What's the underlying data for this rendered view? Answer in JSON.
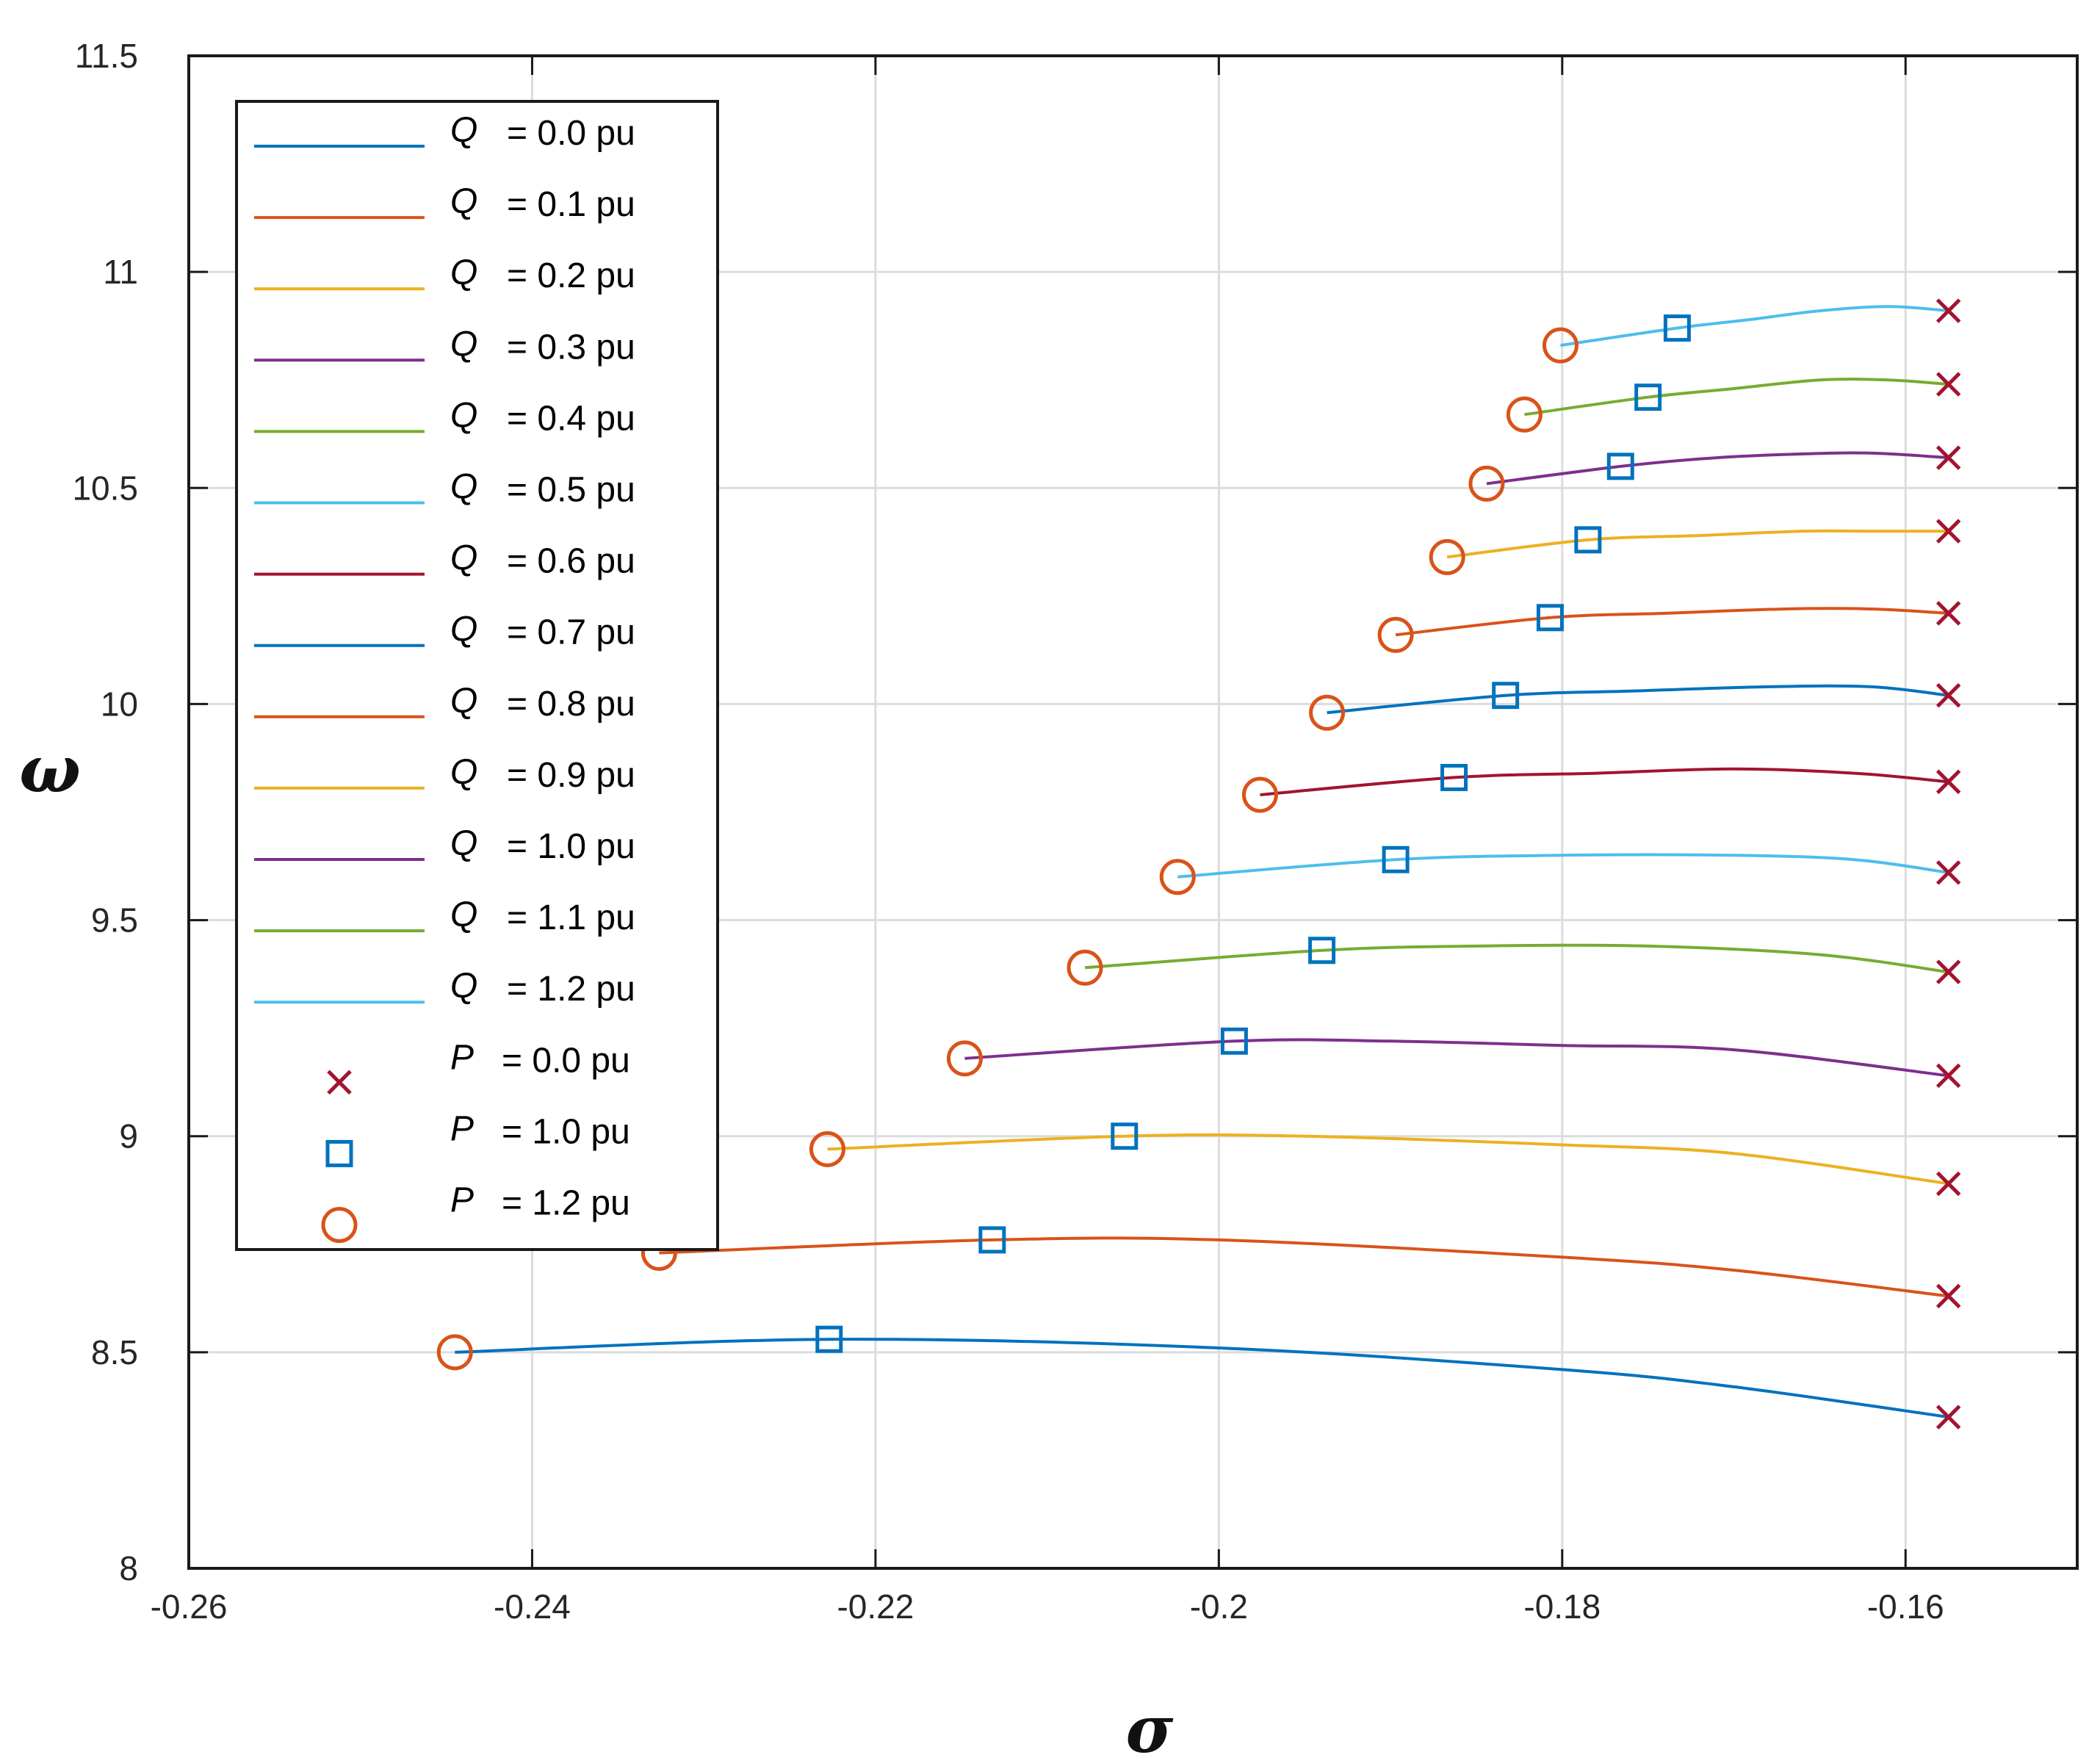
{
  "chart_data": {
    "type": "line",
    "title": "",
    "xlabel": "σ",
    "ylabel": "ω",
    "xlim": [
      -0.26,
      -0.15
    ],
    "ylim": [
      8,
      11.5
    ],
    "x_ticks": [
      -0.26,
      -0.24,
      -0.22,
      -0.2,
      -0.18,
      -0.16
    ],
    "x_tick_labels": [
      "-0.26",
      "-0.24",
      "-0.22",
      "-0.2",
      "-0.18",
      "-0.16"
    ],
    "y_ticks": [
      8,
      8.5,
      9,
      9.5,
      10,
      10.5,
      11,
      11.5
    ],
    "y_tick_labels": [
      "8",
      "8.5",
      "9",
      "9.5",
      "10",
      "10.5",
      "11",
      "11.5"
    ],
    "grid": true,
    "legend_position": "top-left",
    "series": [
      {
        "name": "Q = 0.0 pu",
        "var": "Q",
        "label": "= 0.0 pu",
        "color": "#0072BD",
        "x": [
          -0.2445,
          -0.2227,
          -0.2,
          -0.18,
          -0.17,
          -0.1575
        ],
        "y": [
          8.5,
          8.53,
          8.51,
          8.46,
          8.42,
          8.35
        ]
      },
      {
        "name": "Q = 0.1 pu",
        "var": "Q",
        "label": "= 0.1 pu",
        "color": "#D95319",
        "x": [
          -0.2326,
          -0.2132,
          -0.2,
          -0.18,
          -0.17,
          -0.1575
        ],
        "y": [
          8.73,
          8.76,
          8.76,
          8.72,
          8.69,
          8.63
        ]
      },
      {
        "name": "Q = 0.2 pu",
        "var": "Q",
        "label": "= 0.2 pu",
        "color": "#EDB120",
        "x": [
          -0.2228,
          -0.2055,
          -0.195,
          -0.18,
          -0.17,
          -0.1575
        ],
        "y": [
          8.97,
          9.0,
          9.0,
          8.98,
          8.96,
          8.89
        ]
      },
      {
        "name": "Q = 0.3 pu",
        "var": "Q",
        "label": "= 0.3 pu",
        "color": "#7E2F8E",
        "x": [
          -0.2148,
          -0.1991,
          -0.19,
          -0.18,
          -0.17,
          -0.1575
        ],
        "y": [
          9.18,
          9.22,
          9.22,
          9.21,
          9.2,
          9.14
        ]
      },
      {
        "name": "Q = 0.4 pu",
        "var": "Q",
        "label": "= 0.4 pu",
        "color": "#77AC30",
        "x": [
          -0.2078,
          -0.194,
          -0.185,
          -0.175,
          -0.165,
          -0.1575
        ],
        "y": [
          9.39,
          9.43,
          9.44,
          9.44,
          9.42,
          9.38
        ]
      },
      {
        "name": "Q = 0.5 pu",
        "var": "Q",
        "label": "= 0.5 pu",
        "color": "#4DBEEE",
        "x": [
          -0.2024,
          -0.1897,
          -0.18,
          -0.17,
          -0.163,
          -0.1575
        ],
        "y": [
          9.6,
          9.64,
          9.65,
          9.65,
          9.64,
          9.61
        ]
      },
      {
        "name": "Q = 0.6 pu",
        "var": "Q",
        "label": "= 0.6 pu",
        "color": "#A2142F",
        "x": [
          -0.1976,
          -0.1863,
          -0.178,
          -0.17,
          -0.163,
          -0.1575
        ],
        "y": [
          9.79,
          9.83,
          9.84,
          9.85,
          9.84,
          9.82
        ]
      },
      {
        "name": "Q = 0.7 pu",
        "var": "Q",
        "label": "= 0.7 pu",
        "color": "#0072BD",
        "x": [
          -0.1937,
          -0.1833,
          -0.176,
          -0.168,
          -0.162,
          -0.1575
        ],
        "y": [
          9.98,
          10.02,
          10.03,
          10.04,
          10.04,
          10.02
        ]
      },
      {
        "name": "Q = 0.8 pu",
        "var": "Q",
        "label": "= 0.8 pu",
        "color": "#D95319",
        "x": [
          -0.1897,
          -0.1807,
          -0.174,
          -0.167,
          -0.162,
          -0.1575
        ],
        "y": [
          10.16,
          10.2,
          10.21,
          10.22,
          10.22,
          10.21
        ]
      },
      {
        "name": "Q = 0.9 pu",
        "var": "Q",
        "label": "= 0.9 pu",
        "color": "#EDB120",
        "x": [
          -0.1867,
          -0.1785,
          -0.172,
          -0.166,
          -0.162,
          -0.1575
        ],
        "y": [
          10.34,
          10.38,
          10.39,
          10.4,
          10.4,
          10.4
        ]
      },
      {
        "name": "Q = 1.0 pu",
        "var": "Q",
        "label": "= 1.0 pu",
        "color": "#7E2F8E",
        "x": [
          -0.1844,
          -0.1766,
          -0.171,
          -0.165,
          -0.1615,
          -0.1575
        ],
        "y": [
          10.51,
          10.55,
          10.57,
          10.58,
          10.58,
          10.57
        ]
      },
      {
        "name": "Q = 1.1 pu",
        "var": "Q",
        "label": "= 1.1 pu",
        "color": "#77AC30",
        "x": [
          -0.1822,
          -0.175,
          -0.17,
          -0.165,
          -0.161,
          -0.1575
        ],
        "y": [
          10.67,
          10.71,
          10.73,
          10.75,
          10.75,
          10.74
        ]
      },
      {
        "name": "Q = 1.2 pu",
        "var": "Q",
        "label": "= 1.2 pu",
        "color": "#4DBEEE",
        "x": [
          -0.1801,
          -0.1733,
          -0.169,
          -0.165,
          -0.161,
          -0.1575
        ],
        "y": [
          10.83,
          10.87,
          10.89,
          10.91,
          10.92,
          10.91
        ]
      }
    ],
    "markers": [
      {
        "name": "P = 0.0 pu",
        "var": "P",
        "label": "= 0.0 pu",
        "shape": "x",
        "color": "#A2142F",
        "x": [
          -0.1575,
          -0.1575,
          -0.1575,
          -0.1575,
          -0.1575,
          -0.1575,
          -0.1575,
          -0.1575,
          -0.1575,
          -0.1575,
          -0.1575,
          -0.1575,
          -0.1575
        ],
        "y": [
          8.35,
          8.63,
          8.89,
          9.14,
          9.38,
          9.61,
          9.82,
          10.02,
          10.21,
          10.4,
          10.57,
          10.74,
          10.91
        ]
      },
      {
        "name": "P = 1.0 pu",
        "var": "P",
        "label": "= 1.0 pu",
        "shape": "square",
        "color": "#0072BD",
        "x": [
          -0.2227,
          -0.2132,
          -0.2055,
          -0.1991,
          -0.194,
          -0.1897,
          -0.1863,
          -0.1833,
          -0.1807,
          -0.1785,
          -0.1766,
          -0.175,
          -0.1733
        ],
        "y": [
          8.53,
          8.76,
          9.0,
          9.22,
          9.43,
          9.64,
          9.83,
          10.02,
          10.2,
          10.38,
          10.55,
          10.71,
          10.87
        ]
      },
      {
        "name": "P = 1.2 pu",
        "var": "P",
        "label": "= 1.2 pu",
        "shape": "circle",
        "color": "#D95319",
        "x": [
          -0.2445,
          -0.2326,
          -0.2228,
          -0.2148,
          -0.2078,
          -0.2024,
          -0.1976,
          -0.1937,
          -0.1897,
          -0.1867,
          -0.1844,
          -0.1822,
          -0.1801
        ],
        "y": [
          8.5,
          8.73,
          8.97,
          9.18,
          9.39,
          9.6,
          9.79,
          9.98,
          10.16,
          10.34,
          10.51,
          10.67,
          10.83
        ]
      }
    ]
  }
}
